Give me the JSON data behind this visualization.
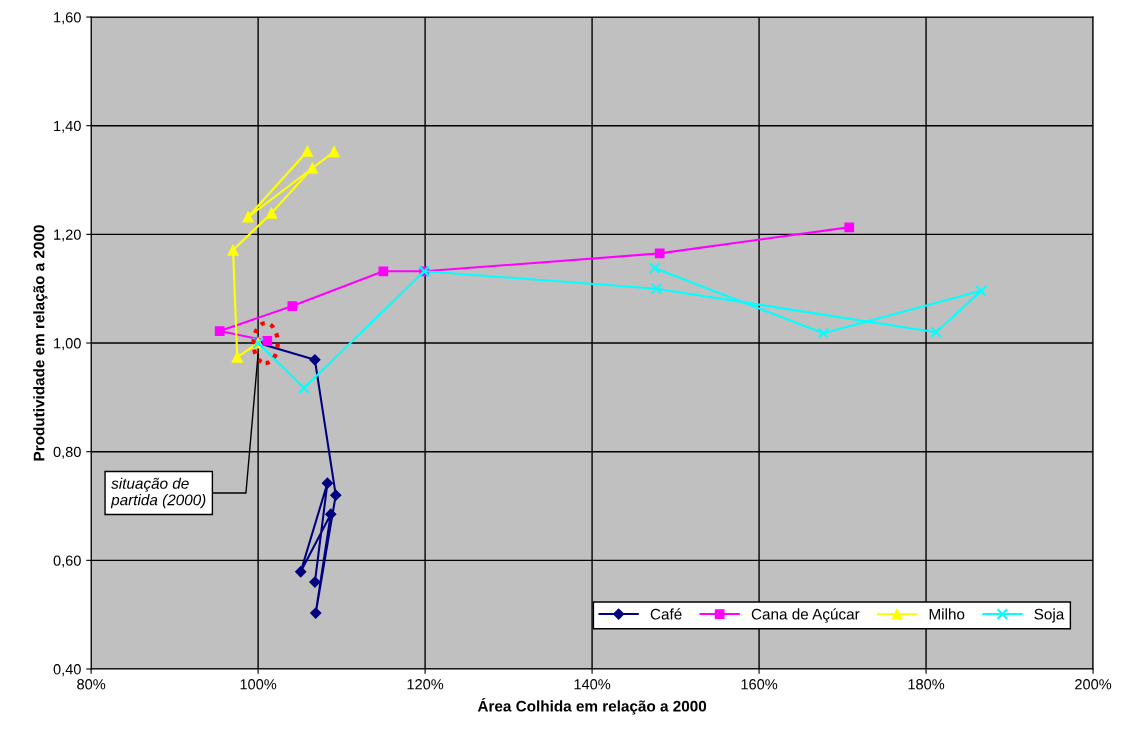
{
  "chart_data": {
    "type": "line",
    "xlabel": "Área Colhida em relação a 2000",
    "ylabel": "Produtividade em relação a 2000",
    "xlim": [
      80,
      200
    ],
    "xticks": [
      {
        "value": 80,
        "label": "80%"
      },
      {
        "value": 100,
        "label": "100%"
      },
      {
        "value": 120,
        "label": "120%"
      },
      {
        "value": 140,
        "label": "140%"
      },
      {
        "value": 160,
        "label": "160%"
      },
      {
        "value": 180,
        "label": "180%"
      },
      {
        "value": 200,
        "label": "200%"
      }
    ],
    "ylim": [
      0.4,
      1.6
    ],
    "yticks": [
      {
        "value": 0.4,
        "label": "0,40"
      },
      {
        "value": 0.6,
        "label": "0,60"
      },
      {
        "value": 0.8,
        "label": "0,80"
      },
      {
        "value": 1.0,
        "label": "1,00"
      },
      {
        "value": 1.2,
        "label": "1,20"
      },
      {
        "value": 1.4,
        "label": "1,40"
      },
      {
        "value": 1.6,
        "label": "1,60"
      }
    ],
    "grid": true,
    "legend": "bottom right",
    "annotations": [
      "situação de\npartida (2000)"
    ],
    "series": [
      {
        "name": "Café",
        "color": "#000080",
        "marker": "diamond",
        "x": [
          100,
          106.8,
          109.3,
          106.9,
          108.7,
          105.1,
          108.3,
          106.8
        ],
        "values": [
          1.0,
          0.969,
          0.72,
          0.503,
          0.685,
          0.579,
          0.742,
          0.56
        ]
      },
      {
        "name": "Cana de Açúcar",
        "color": "#ff00ff",
        "marker": "square",
        "x": [
          101.1,
          95.4,
          104.1,
          115.0,
          119.9,
          148.1,
          170.8
        ],
        "values": [
          1.004,
          1.022,
          1.068,
          1.132,
          1.132,
          1.165,
          1.213
        ]
      },
      {
        "name": "Milho",
        "color": "#ffff00",
        "marker": "triangle",
        "x": [
          100,
          97.5,
          97.0,
          101.6,
          106.5,
          109.1,
          98.8,
          105.9
        ],
        "values": [
          1.0,
          0.974,
          1.171,
          1.239,
          1.322,
          1.352,
          1.232,
          1.353
        ]
      },
      {
        "name": "Soja",
        "color": "#00ffff",
        "marker": "cross",
        "x": [
          100,
          105.5,
          119.9,
          147.7,
          181.2,
          186.6,
          167.7,
          147.5
        ],
        "values": [
          1.0,
          0.917,
          1.132,
          1.1,
          1.02,
          1.096,
          1.018,
          1.138
        ]
      }
    ]
  }
}
